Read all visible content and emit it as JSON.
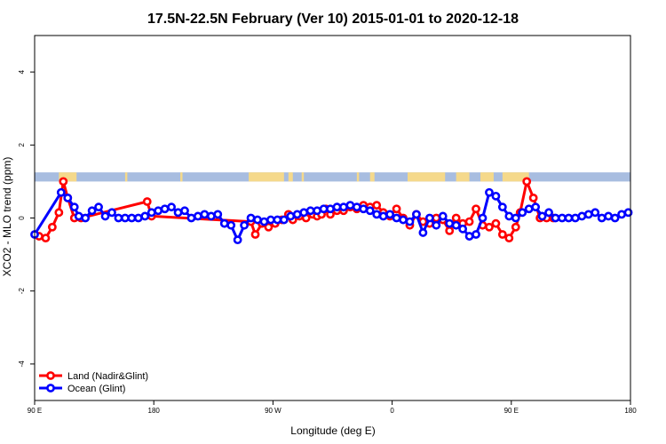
{
  "chart_data": {
    "type": "line",
    "title": "17.5N-22.5N February (Ver 10)   2015-01-01 to 2020-12-18",
    "xlabel": "Longitude (deg E)",
    "ylabel": "XCO2 - MLO trend (ppm)",
    "xlim": [
      -90,
      180
    ],
    "ylim": [
      -5,
      5
    ],
    "x_ticks": [
      {
        "value": -90,
        "label": "90 E"
      },
      {
        "value": -36,
        "label": "180"
      },
      {
        "value": 18,
        "label": "90 W"
      },
      {
        "value": 72,
        "label": "0"
      },
      {
        "value": 126,
        "label": "90 E"
      },
      {
        "value": 180,
        "label": "180"
      }
    ],
    "y_ticks": [
      -4,
      -2,
      0,
      2,
      4
    ],
    "grid": false,
    "legend_position": "bottom-left",
    "series": [
      {
        "name": "Land (Nadir&Glint)",
        "color": "#ff0000",
        "x": [
          -88,
          -85,
          -82,
          -79,
          -77,
          -75,
          -72,
          -69,
          -39,
          -37,
          8,
          10,
          13,
          16,
          19,
          22,
          25,
          27,
          30,
          33,
          36,
          38,
          40,
          42,
          44,
          47,
          50,
          53,
          56,
          59,
          62,
          65,
          68,
          71,
          74,
          77,
          80,
          83,
          86,
          89,
          92,
          95,
          98,
          101,
          104,
          107,
          110,
          113,
          116,
          119,
          122,
          125,
          128,
          130,
          133,
          136,
          139,
          142,
          145
        ],
        "y": [
          -0.5,
          -0.55,
          -0.25,
          0.15,
          1.0,
          0.55,
          0.0,
          0.0,
          0.45,
          0.05,
          -0.1,
          -0.45,
          -0.15,
          -0.25,
          -0.15,
          -0.05,
          0.1,
          -0.05,
          0.05,
          0.0,
          0.1,
          0.05,
          0.1,
          0.25,
          0.1,
          0.2,
          0.2,
          0.3,
          0.25,
          0.35,
          0.3,
          0.35,
          0.15,
          0.05,
          0.25,
          0.0,
          -0.2,
          0.1,
          -0.1,
          -0.15,
          0.0,
          -0.05,
          -0.35,
          0.0,
          -0.15,
          -0.1,
          0.25,
          -0.2,
          -0.25,
          -0.15,
          -0.45,
          -0.55,
          -0.25,
          0.15,
          1.0,
          0.55,
          0.0,
          0.0,
          0.0
        ]
      },
      {
        "name": "Ocean (Glint)",
        "color": "#0000ff",
        "x": [
          -90,
          -78,
          -75,
          -72,
          -70,
          -67,
          -64,
          -61,
          -58,
          -55,
          -52,
          -49,
          -46,
          -43,
          -40,
          -37,
          -34,
          -31,
          -28,
          -25,
          -22,
          -19,
          -16,
          -13,
          -10,
          -7,
          -4,
          -1,
          2,
          5,
          8,
          11,
          14,
          17,
          20,
          23,
          26,
          29,
          32,
          35,
          38,
          41,
          44,
          47,
          50,
          53,
          56,
          59,
          62,
          65,
          68,
          71,
          74,
          77,
          80,
          83,
          86,
          89,
          92,
          95,
          98,
          101,
          104,
          107,
          110,
          113,
          116,
          119,
          122,
          125,
          128,
          131,
          134,
          137,
          140,
          143,
          146,
          149,
          152,
          155,
          158,
          161,
          164,
          167,
          170,
          173,
          176,
          179
        ],
        "y": [
          -0.45,
          0.7,
          0.55,
          0.3,
          0.05,
          0.0,
          0.2,
          0.3,
          0.05,
          0.15,
          0.0,
          0.0,
          0.0,
          0.0,
          0.05,
          0.15,
          0.2,
          0.25,
          0.3,
          0.15,
          0.2,
          0.0,
          0.05,
          0.1,
          0.05,
          0.1,
          -0.15,
          -0.2,
          -0.6,
          -0.2,
          0.0,
          -0.05,
          -0.1,
          -0.05,
          -0.05,
          -0.05,
          0.05,
          0.1,
          0.15,
          0.2,
          0.2,
          0.25,
          0.25,
          0.3,
          0.3,
          0.35,
          0.3,
          0.25,
          0.2,
          0.1,
          0.05,
          0.1,
          0.0,
          -0.05,
          -0.1,
          0.1,
          -0.4,
          0.0,
          -0.2,
          0.05,
          -0.15,
          -0.2,
          -0.3,
          -0.5,
          -0.45,
          0.0,
          0.7,
          0.6,
          0.3,
          0.05,
          0.0,
          0.15,
          0.25,
          0.3,
          0.05,
          0.15,
          0.0,
          0.0,
          0.0,
          0.0,
          0.05,
          0.1,
          0.15,
          0.0,
          0.05,
          0.0,
          0.1,
          0.15
        ]
      }
    ],
    "colors": {
      "ocean": "#a8bde0",
      "land": "#f5d98b"
    },
    "land_strip": [
      [
        -79,
        -71
      ],
      [
        -49,
        -48
      ],
      [
        -24,
        -23
      ],
      [
        7,
        23
      ],
      [
        25,
        27
      ],
      [
        31,
        32
      ],
      [
        56,
        57
      ],
      [
        62,
        64
      ],
      [
        79,
        96
      ],
      [
        101,
        107
      ],
      [
        112,
        118
      ],
      [
        122,
        134
      ]
    ]
  }
}
